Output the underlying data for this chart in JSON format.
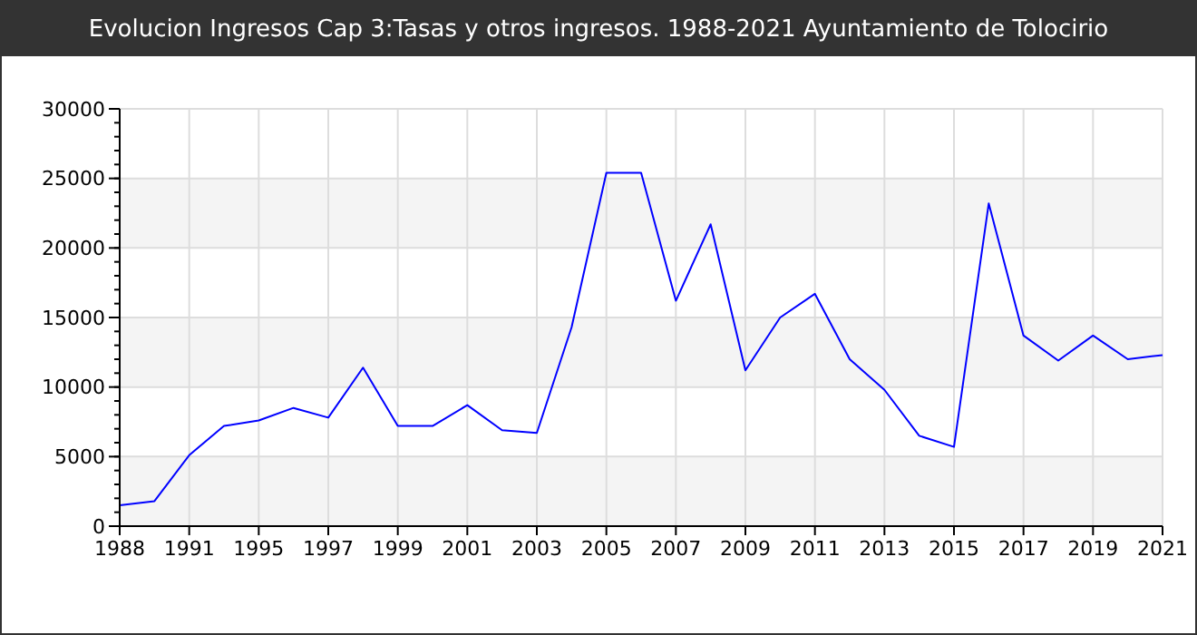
{
  "chart_data": {
    "type": "line",
    "title": "Evolucion Ingresos Cap 3:Tasas y otros ingresos. 1988-2021 Ayuntamiento de Tolocirio",
    "categories": [
      "1988",
      null,
      "1991",
      null,
      "1995",
      null,
      "1997",
      null,
      "1999",
      null,
      "2001",
      null,
      "2003",
      null,
      "2005",
      null,
      "2007",
      null,
      "2009",
      null,
      "2011",
      null,
      "2013",
      null,
      "2015",
      null,
      "2017",
      null,
      "2019",
      null,
      "2021"
    ],
    "series": [
      {
        "color": "#0000ff",
        "values": [
          1500,
          1800,
          5100,
          7200,
          7600,
          8500,
          7800,
          11400,
          7200,
          7200,
          8700,
          6900,
          6700,
          14300,
          25400,
          25400,
          16200,
          21700,
          11200,
          15000,
          16700,
          12000,
          9800,
          6500,
          5700,
          23200,
          13700,
          11900,
          13700,
          12000,
          12300
        ]
      }
    ],
    "ylim": [
      0,
      30000
    ],
    "yticks": [
      0,
      5000,
      10000,
      15000,
      20000,
      25000,
      30000
    ],
    "grid": true,
    "marker": "none",
    "line_style": "solid"
  }
}
